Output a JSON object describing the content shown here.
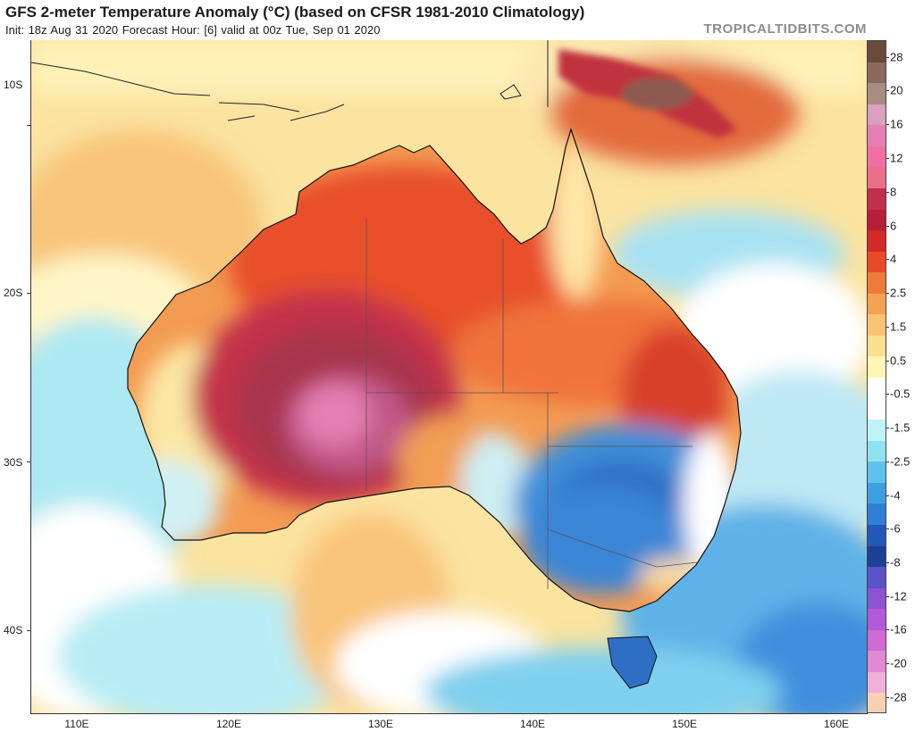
{
  "header": {
    "title": "GFS 2-meter Temperature Anomaly (°C) (based on CFSR 1981-2010 Climatology)",
    "subtitle": "Init: 18z Aug 31 2020   Forecast Hour: [6]   valid at 00z Tue, Sep 01 2020",
    "brand": "TROPICALTIDBITS.COM"
  },
  "axes": {
    "latitude_labels": [
      "10S",
      "20S",
      "30S",
      "40S"
    ],
    "longitude_labels": [
      "110E",
      "120E",
      "130E",
      "140E",
      "150E",
      "160E"
    ]
  },
  "colorbar": {
    "labels": [
      "28",
      "20",
      "16",
      "12",
      "8",
      "6",
      "4",
      "2.5",
      "1.5",
      "0.5",
      "-0.5",
      "-1.5",
      "-2.5",
      "-4",
      "-6",
      "-8",
      "-12",
      "-16",
      "-20",
      "-28"
    ],
    "colors": [
      "#6b4a3c",
      "#8a6a5e",
      "#a88c82",
      "#d9a0c0",
      "#e67fb4",
      "#f06fa3",
      "#e8708a",
      "#c0304a",
      "#b81d3a",
      "#d42a2a",
      "#e84a28",
      "#f07a3a",
      "#f6a255",
      "#f9c473",
      "#fbe08e",
      "#fff5b4",
      "#ffffff",
      "#ffffff",
      "#bff3f5",
      "#8fe3ef",
      "#5ec2ec",
      "#3e9ee3",
      "#2f7fd6",
      "#2358b8",
      "#1c4096",
      "#5b53c8",
      "#8a54d2",
      "#b35ad8",
      "#d06ad4",
      "#e08ad4",
      "#eeb0d8",
      "#f8d2b0"
    ]
  },
  "map": {
    "region": "Australia",
    "lon_range": [
      107,
      162
    ],
    "lat_range": [
      -45,
      -5
    ],
    "field": "2-meter temperature anomaly"
  }
}
